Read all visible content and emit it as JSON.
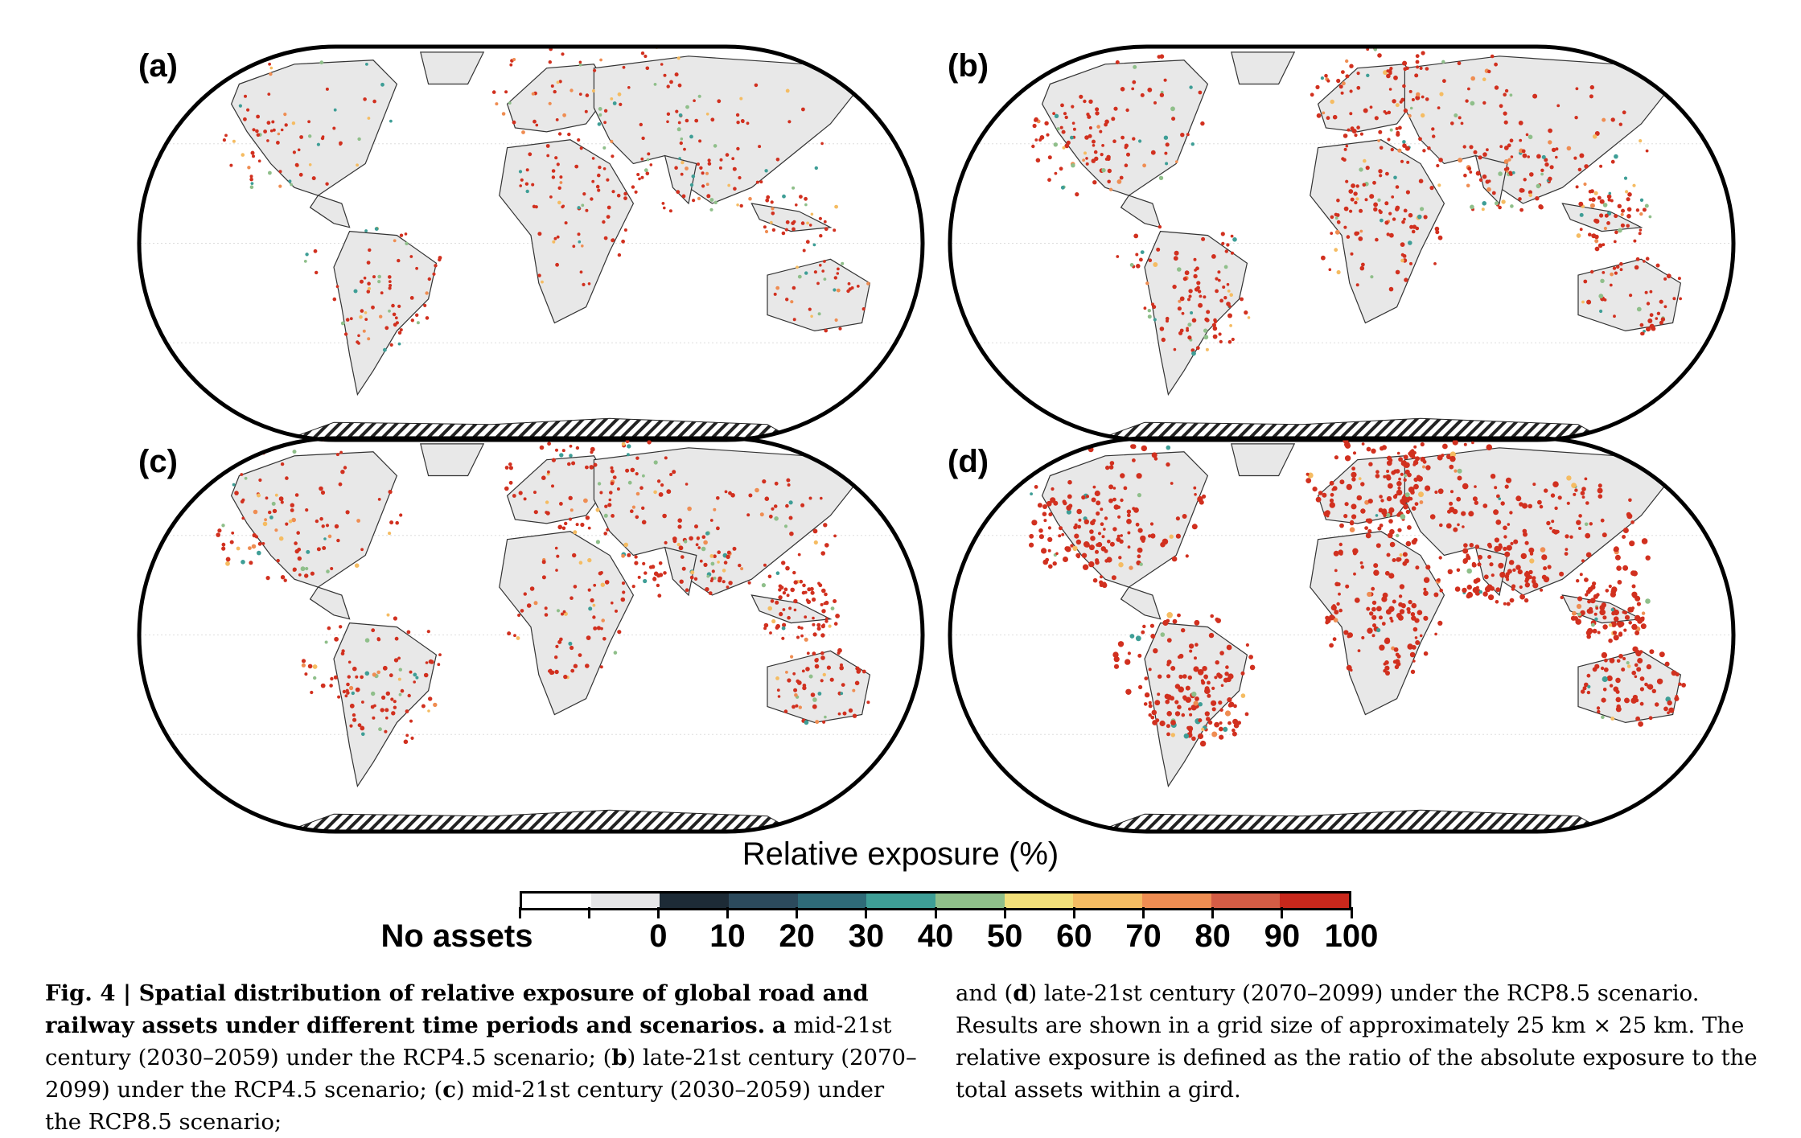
{
  "panels": [
    {
      "label": "(a)",
      "intensity": 0.3
    },
    {
      "label": "(b)",
      "intensity": 0.55
    },
    {
      "label": "(c)",
      "intensity": 0.5
    },
    {
      "label": "(d)",
      "intensity": 0.9
    }
  ],
  "legend": {
    "title": "Relative exposure (%)",
    "no_assets_label": "No assets",
    "ticks": [
      "0",
      "10",
      "20",
      "30",
      "40",
      "50",
      "60",
      "70",
      "80",
      "90",
      "100"
    ],
    "colors": [
      "#ffffff",
      "#e6e6e8",
      "#1d2b36",
      "#2c4a5c",
      "#2f6b78",
      "#3e9e96",
      "#8fbf8a",
      "#f2e07a",
      "#f5bc62",
      "#ef8d52",
      "#d45c45",
      "#c8281c"
    ]
  },
  "map_style": {
    "land_color": "#e8e8e8",
    "exposure_color": "#d1301f",
    "antarctica_hatch": true
  },
  "caption": {
    "fig_label": "Fig. 4 | Spatial distribution of relative exposure of global road and railway assets under different time periods and scenarios.",
    "left_rest_1": " ",
    "a_label": "a",
    "a_text": " mid-21st century (2030–2059) under the RCP4.5 scenario; (",
    "b_label": "b",
    "b_text": ") late-21st century (2070–2099) under the RCP4.5 scenario; (",
    "c_label": "c",
    "c_text": ") mid-21st century (2030–2059) under the RCP8.5 scenario;",
    "right_1": "and (",
    "d_label": "d",
    "right_2": ") late-21st century (2070–2099) under the RCP8.5 scenario. Results are shown in a grid size of approximately 25 km × 25 km. The relative exposure is defined as the ratio of the absolute exposure to the total assets within a gird."
  }
}
